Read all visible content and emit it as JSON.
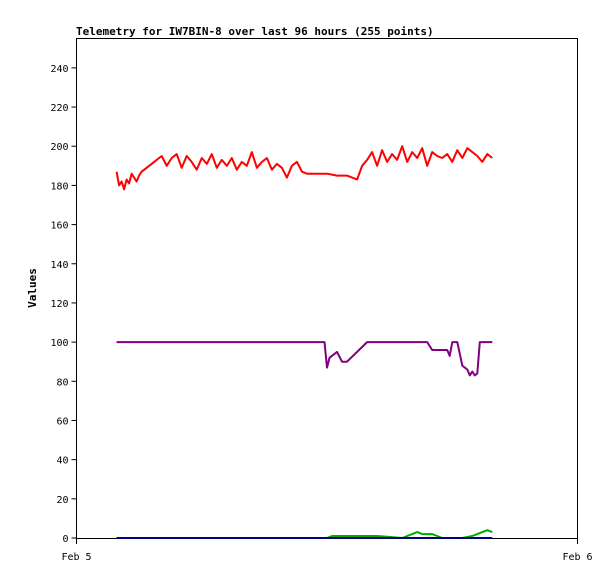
{
  "chart_data": {
    "type": "line",
    "title": "Telemetry for IW7BIN-8 over last 96 hours (255 points)",
    "ylabel": "Values",
    "xlabel": "",
    "x_ticks": [
      "Feb 5",
      "Feb 6"
    ],
    "y_ticks": [
      0,
      20,
      40,
      60,
      80,
      100,
      120,
      140,
      160,
      180,
      200,
      220,
      240
    ],
    "ylim": [
      0,
      255
    ],
    "xlim": [
      0,
      1
    ],
    "grid": false,
    "legend": "none",
    "series": [
      {
        "color": "#ff0000",
        "x": [
          0.08,
          0.085,
          0.09,
          0.095,
          0.1,
          0.105,
          0.11,
          0.115,
          0.12,
          0.125,
          0.13,
          0.14,
          0.15,
          0.16,
          0.17,
          0.18,
          0.19,
          0.2,
          0.21,
          0.22,
          0.23,
          0.24,
          0.25,
          0.26,
          0.27,
          0.28,
          0.29,
          0.3,
          0.31,
          0.32,
          0.33,
          0.34,
          0.35,
          0.36,
          0.37,
          0.38,
          0.39,
          0.4,
          0.41,
          0.42,
          0.43,
          0.44,
          0.45,
          0.46,
          0.47,
          0.48,
          0.5,
          0.52,
          0.54,
          0.56,
          0.57,
          0.58,
          0.59,
          0.6,
          0.61,
          0.62,
          0.63,
          0.64,
          0.65,
          0.66,
          0.67,
          0.68,
          0.69,
          0.7,
          0.71,
          0.72,
          0.73,
          0.74,
          0.75,
          0.76,
          0.77,
          0.78,
          0.79,
          0.8,
          0.81,
          0.82,
          0.83
        ],
        "values": [
          187,
          180,
          182,
          178,
          183,
          181,
          186,
          184,
          182,
          185,
          187,
          189,
          191,
          193,
          195,
          190,
          194,
          196,
          189,
          195,
          192,
          188,
          194,
          191,
          196,
          189,
          193,
          190,
          194,
          188,
          192,
          190,
          197,
          189,
          192,
          194,
          188,
          191,
          189,
          184,
          190,
          192,
          187,
          186,
          186,
          186,
          186,
          185,
          185,
          183,
          190,
          193,
          197,
          190,
          198,
          192,
          196,
          193,
          200,
          192,
          197,
          194,
          199,
          190,
          197,
          195,
          194,
          196,
          192,
          198,
          194,
          199,
          197,
          195,
          192,
          196,
          194
        ]
      },
      {
        "color": "#800080",
        "x": [
          0.08,
          0.25,
          0.4,
          0.495,
          0.5,
          0.505,
          0.51,
          0.52,
          0.53,
          0.54,
          0.56,
          0.58,
          0.6,
          0.65,
          0.7,
          0.71,
          0.74,
          0.745,
          0.75,
          0.76,
          0.77,
          0.775,
          0.78,
          0.785,
          0.79,
          0.795,
          0.8,
          0.805,
          0.81,
          0.83
        ],
        "values": [
          100,
          100,
          100,
          100,
          87,
          92,
          93,
          95,
          90,
          90,
          95,
          100,
          100,
          100,
          100,
          96,
          96,
          93,
          100,
          100,
          88,
          87,
          86,
          83,
          85,
          83,
          84,
          100,
          100,
          100
        ]
      },
      {
        "color": "#00aa00",
        "x": [
          0.08,
          0.3,
          0.5,
          0.51,
          0.6,
          0.65,
          0.66,
          0.67,
          0.68,
          0.69,
          0.7,
          0.71,
          0.72,
          0.73,
          0.77,
          0.79,
          0.8,
          0.81,
          0.82,
          0.83
        ],
        "values": [
          0,
          0,
          0,
          1,
          1,
          0,
          1,
          2,
          3,
          2,
          2,
          2,
          1,
          0,
          0,
          1,
          2,
          3,
          4,
          3
        ]
      },
      {
        "color": "#000080",
        "x": [
          0.08,
          0.3,
          0.6,
          0.83
        ],
        "values": [
          0,
          0,
          0,
          0
        ]
      }
    ]
  }
}
